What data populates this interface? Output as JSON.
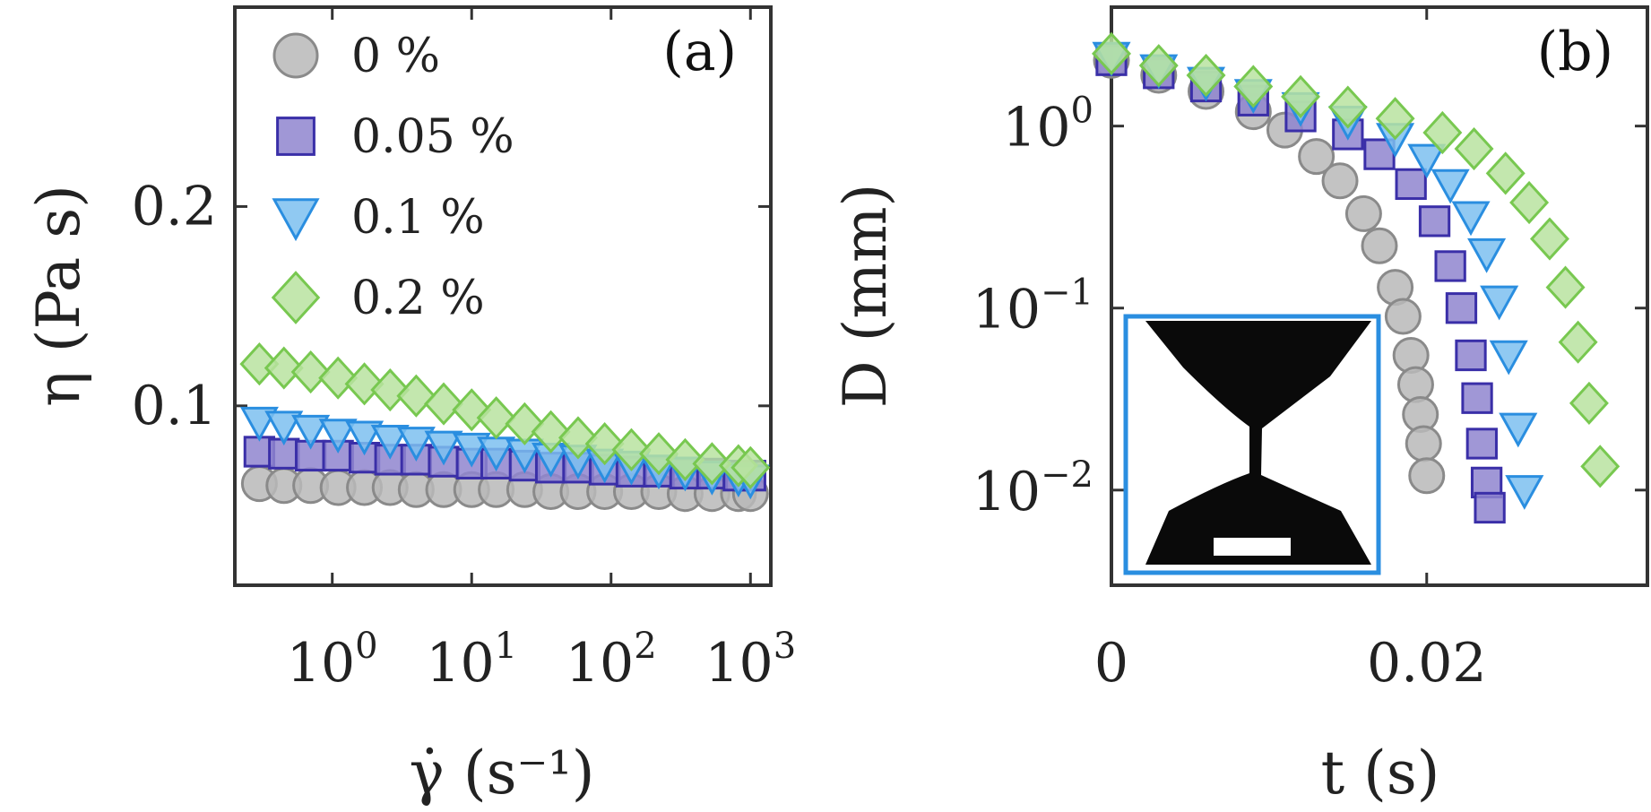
{
  "chart_data": [
    {
      "id": "a",
      "type": "scatter",
      "panel_label": "(a)",
      "xlabel": "γ̇ (s⁻¹)",
      "ylabel": "η (Pa s)",
      "xscale": "log",
      "xlim": [
        0.2,
        1400
      ],
      "ylim": [
        0.01,
        0.3
      ],
      "xticks": [
        {
          "value": 1,
          "base": "10",
          "exp": "0"
        },
        {
          "value": 10,
          "base": "10",
          "exp": "1"
        },
        {
          "value": 100,
          "base": "10",
          "exp": "2"
        },
        {
          "value": 1000,
          "base": "10",
          "exp": "3"
        }
      ],
      "yticks": [
        {
          "value": 0.1,
          "label": "0.1"
        },
        {
          "value": 0.2,
          "label": "0.2"
        }
      ],
      "legend_position": "top-left",
      "series": [
        {
          "name": "0 %",
          "marker": "circle",
          "fill": "#b9b9b9",
          "stroke": "#8a8a8a",
          "x": [
            0.3,
            0.45,
            0.7,
            1.1,
            1.7,
            2.6,
            4,
            6.3,
            10,
            15,
            24,
            37,
            58,
            90,
            140,
            220,
            340,
            530,
            820,
            1000
          ],
          "y": [
            0.061,
            0.06,
            0.06,
            0.059,
            0.059,
            0.059,
            0.058,
            0.058,
            0.058,
            0.058,
            0.058,
            0.057,
            0.057,
            0.057,
            0.057,
            0.057,
            0.056,
            0.056,
            0.056,
            0.056
          ]
        },
        {
          "name": "0.05 %",
          "marker": "square",
          "fill": "#8f85cf",
          "stroke": "#3a2fa8",
          "x": [
            0.3,
            0.45,
            0.7,
            1.1,
            1.7,
            2.6,
            4,
            6.3,
            10,
            15,
            24,
            37,
            58,
            90,
            140,
            220,
            340,
            530,
            820,
            1000
          ],
          "y": [
            0.077,
            0.076,
            0.075,
            0.075,
            0.074,
            0.073,
            0.073,
            0.072,
            0.071,
            0.071,
            0.07,
            0.069,
            0.069,
            0.068,
            0.067,
            0.067,
            0.066,
            0.066,
            0.065,
            0.065
          ]
        },
        {
          "name": "0.1 %",
          "marker": "triangle-down",
          "fill": "#7cc0f0",
          "stroke": "#2a8ee0",
          "x": [
            0.3,
            0.45,
            0.7,
            1.1,
            1.7,
            2.6,
            4,
            6.3,
            10,
            15,
            24,
            37,
            58,
            90,
            140,
            220,
            340,
            530,
            820,
            1000
          ],
          "y": [
            0.092,
            0.09,
            0.088,
            0.086,
            0.085,
            0.083,
            0.082,
            0.08,
            0.079,
            0.077,
            0.076,
            0.074,
            0.073,
            0.071,
            0.07,
            0.068,
            0.067,
            0.065,
            0.064,
            0.063
          ]
        },
        {
          "name": "0.2 %",
          "marker": "diamond",
          "fill": "#b8e3a0",
          "stroke": "#78c850",
          "x": [
            0.3,
            0.45,
            0.7,
            1.1,
            1.7,
            2.6,
            4,
            6.3,
            10,
            15,
            24,
            37,
            58,
            90,
            140,
            220,
            340,
            530,
            820,
            1000
          ],
          "y": [
            0.121,
            0.119,
            0.117,
            0.114,
            0.111,
            0.108,
            0.105,
            0.101,
            0.098,
            0.094,
            0.091,
            0.087,
            0.084,
            0.081,
            0.078,
            0.076,
            0.073,
            0.071,
            0.07,
            0.069
          ]
        }
      ]
    },
    {
      "id": "b",
      "type": "scatter",
      "panel_label": "(b)",
      "xlabel": "t (s)",
      "ylabel": "D (mm)",
      "yscale": "log",
      "xlim": [
        0,
        0.034
      ],
      "ylim": [
        0.003,
        4.5
      ],
      "xticks": [
        {
          "value": 0,
          "label": "0"
        },
        {
          "value": 0.02,
          "label": "0.02"
        }
      ],
      "yticks": [
        {
          "value": 1,
          "base": "10",
          "exp": "0"
        },
        {
          "value": 0.1,
          "base": "10",
          "exp": "−1"
        },
        {
          "value": 0.01,
          "base": "10",
          "exp": "−2"
        }
      ],
      "series": [
        {
          "name": "0 %",
          "marker": "circle",
          "fill": "#b9b9b9",
          "stroke": "#8a8a8a",
          "x": [
            0.0,
            0.003,
            0.006,
            0.009,
            0.011,
            0.013,
            0.0145,
            0.016,
            0.017,
            0.018,
            0.0185,
            0.019,
            0.0193,
            0.0196,
            0.0198,
            0.02
          ],
          "y": [
            2.3,
            1.9,
            1.55,
            1.2,
            0.95,
            0.68,
            0.5,
            0.33,
            0.22,
            0.13,
            0.09,
            0.055,
            0.038,
            0.026,
            0.018,
            0.012
          ]
        },
        {
          "name": "0.05 %",
          "marker": "square",
          "fill": "#8f85cf",
          "stroke": "#3a2fa8",
          "x": [
            0.0,
            0.003,
            0.006,
            0.009,
            0.012,
            0.015,
            0.017,
            0.019,
            0.0205,
            0.0215,
            0.0222,
            0.0228,
            0.0232,
            0.0235,
            0.0238,
            0.024
          ],
          "y": [
            2.3,
            1.95,
            1.65,
            1.38,
            1.13,
            0.9,
            0.7,
            0.48,
            0.3,
            0.17,
            0.1,
            0.055,
            0.032,
            0.018,
            0.011,
            0.008
          ]
        },
        {
          "name": "0.1 %",
          "marker": "triangle-down",
          "fill": "#7cc0f0",
          "stroke": "#2a8ee0",
          "x": [
            0.0,
            0.003,
            0.006,
            0.009,
            0.012,
            0.015,
            0.018,
            0.02,
            0.0215,
            0.0228,
            0.0238,
            0.0246,
            0.0252,
            0.0258,
            0.0262
          ],
          "y": [
            2.4,
            2.05,
            1.75,
            1.5,
            1.27,
            1.07,
            0.86,
            0.66,
            0.48,
            0.32,
            0.2,
            0.11,
            0.055,
            0.022,
            0.01
          ]
        },
        {
          "name": "0.2 %",
          "marker": "diamond",
          "fill": "#b8e3a0",
          "stroke": "#78c850",
          "x": [
            0.0,
            0.003,
            0.006,
            0.009,
            0.012,
            0.015,
            0.018,
            0.021,
            0.023,
            0.025,
            0.0265,
            0.0278,
            0.0288,
            0.0296,
            0.0303,
            0.031
          ],
          "y": [
            2.5,
            2.15,
            1.9,
            1.65,
            1.45,
            1.27,
            1.1,
            0.92,
            0.75,
            0.55,
            0.38,
            0.24,
            0.13,
            0.065,
            0.03,
            0.0135
          ]
        }
      ],
      "inset": {
        "description_label": "inset",
        "border_color": "#2a8ee0"
      }
    }
  ]
}
